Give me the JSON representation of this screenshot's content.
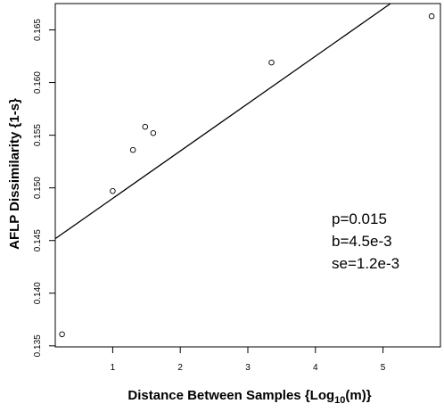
{
  "chart_data": {
    "type": "scatter",
    "xlabel": {
      "prefix": "Distance Between Samples {Log",
      "subscript": "10",
      "suffix": "(m)}"
    },
    "ylabel": "AFLP Dissimilarity {1-s}",
    "xlim": [
      0.15,
      5.85
    ],
    "ylim": [
      0.1349,
      0.1675
    ],
    "x_ticks": [
      1,
      2,
      3,
      4,
      5
    ],
    "y_ticks": [
      0.135,
      0.14,
      0.145,
      0.15,
      0.155,
      0.16,
      0.165
    ],
    "y_tick_labels": [
      "0.135",
      "0.140",
      "0.145",
      "0.150",
      "0.155",
      "0.160",
      "0.165"
    ],
    "points": [
      {
        "x": 0.25,
        "y": 0.1361
      },
      {
        "x": 1.0,
        "y": 0.1497
      },
      {
        "x": 1.3,
        "y": 0.1536
      },
      {
        "x": 1.48,
        "y": 0.1558
      },
      {
        "x": 1.6,
        "y": 0.1552
      },
      {
        "x": 3.35,
        "y": 0.1619
      },
      {
        "x": 5.72,
        "y": 0.1663
      }
    ],
    "fit_line": {
      "intercept": 0.1445,
      "slope": 0.0045
    },
    "annotations": [
      "p=0.015",
      "b=4.5e-3",
      "se=1.2e-3"
    ],
    "grid": false
  }
}
